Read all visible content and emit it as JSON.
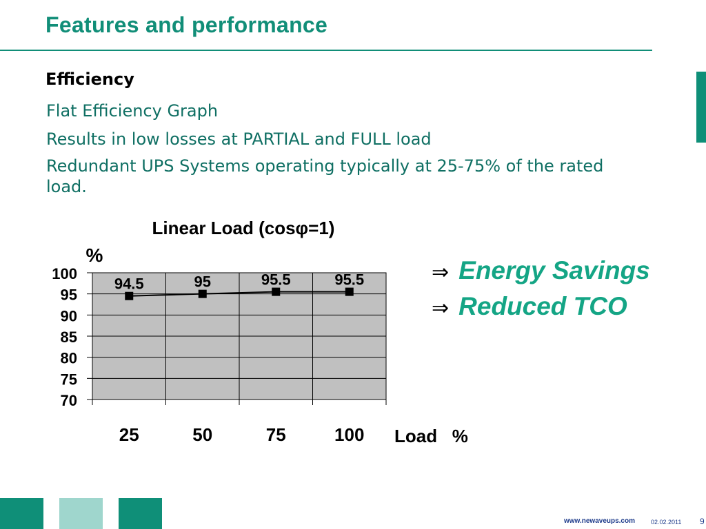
{
  "slide": {
    "title": "Features and performance",
    "heading": "Efficiency",
    "bullets": [
      "Flat Efficiency Graph",
      "Results in low losses at PARTIAL and FULL load",
      "Redundant UPS Systems operating typically at 25-75% of the rated load."
    ],
    "outcomes": [
      {
        "arrow": "⇒",
        "text": "Energy Savings"
      },
      {
        "arrow": "⇒",
        "text": "Reduced TCO"
      }
    ],
    "footer": {
      "url": "www.newaveups.com",
      "date": "02.02.2011",
      "page": "9"
    },
    "colors": {
      "accent": "#118e78",
      "accent_light": "#9fd6cd",
      "outcome_text": "#14a585",
      "plot_background": "#c0c0c0"
    }
  },
  "chart_data": {
    "type": "line",
    "title": "Linear Load (cosφ=1)",
    "ylabel": "%",
    "xlabel": "Load   %",
    "categories": [
      "25",
      "50",
      "75",
      "100"
    ],
    "series": [
      {
        "values": [
          94.5,
          95,
          95.5,
          95.5
        ],
        "labels": [
          "94.5",
          "95",
          "95.5",
          "95.5"
        ]
      }
    ],
    "ylim": [
      70,
      100
    ],
    "yticks": [
      100,
      95,
      90,
      85,
      80,
      75,
      70
    ],
    "grid": true,
    "marker": "square"
  }
}
